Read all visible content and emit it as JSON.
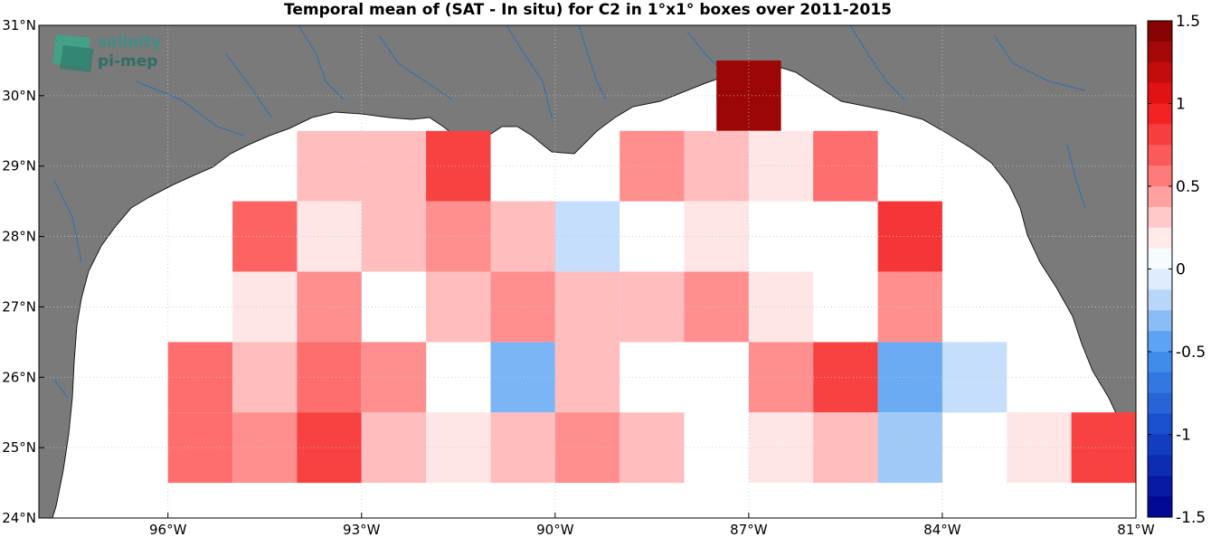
{
  "title": "Temporal mean of (SAT - In situ) for C2 in 1°x1° boxes over 2011-2015",
  "logo": {
    "line1": "salinity",
    "line2": "pi-mep"
  },
  "colors": {
    "land": "#7a7a7a",
    "sea": "#ffffff",
    "river": "#2f6fb0",
    "grid": "#c8c8c8"
  },
  "map": {
    "lon_range": [
      -98,
      -81
    ],
    "lat_range": [
      24,
      31
    ],
    "lon_ticks": [
      {
        "value": -96,
        "label": "96°W"
      },
      {
        "value": -93,
        "label": "93°W"
      },
      {
        "value": -90,
        "label": "90°W"
      },
      {
        "value": -87,
        "label": "87°W"
      },
      {
        "value": -84,
        "label": "84°W"
      },
      {
        "value": -81,
        "label": "81°W"
      }
    ],
    "lat_ticks": [
      {
        "value": 24,
        "label": "24°N"
      },
      {
        "value": 25,
        "label": "25°N"
      },
      {
        "value": 26,
        "label": "26°N"
      },
      {
        "value": 27,
        "label": "27°N"
      },
      {
        "value": 28,
        "label": "28°N"
      },
      {
        "value": 29,
        "label": "29°N"
      },
      {
        "value": 30,
        "label": "30°N"
      },
      {
        "value": 31,
        "label": "31°N"
      }
    ]
  },
  "colorbar": {
    "range": [
      -1.5,
      1.5
    ],
    "ticks": [
      {
        "value": 1.5,
        "label": "1.5"
      },
      {
        "value": 1,
        "label": "1"
      },
      {
        "value": 0.5,
        "label": "0.5"
      },
      {
        "value": 0,
        "label": "0"
      },
      {
        "value": -0.5,
        "label": "-0.5"
      },
      {
        "value": -1,
        "label": "-1"
      },
      {
        "value": -1.5,
        "label": "-1.5"
      }
    ]
  },
  "chart_data": {
    "type": "heatmap",
    "title": "Temporal mean of (SAT - In situ) for C2 in 1°x1° boxes over 2011-2015",
    "cell_size_deg": 1,
    "value_range": [
      -1.5,
      1.5
    ],
    "cells": [
      {
        "lon": -87,
        "lat": 30,
        "value": 1.35
      },
      {
        "lon": -93.5,
        "lat": 29,
        "value": 0.35
      },
      {
        "lon": -92.5,
        "lat": 29,
        "value": 0.35
      },
      {
        "lon": -91.5,
        "lat": 29,
        "value": 0.8
      },
      {
        "lon": -88.5,
        "lat": 29,
        "value": 0.5
      },
      {
        "lon": -87.5,
        "lat": 29,
        "value": 0.35
      },
      {
        "lon": -86.5,
        "lat": 29,
        "value": 0.2
      },
      {
        "lon": -85.5,
        "lat": 29,
        "value": 0.6
      },
      {
        "lon": -94.5,
        "lat": 28,
        "value": 0.65
      },
      {
        "lon": -93.5,
        "lat": 28,
        "value": 0.2
      },
      {
        "lon": -92.5,
        "lat": 28,
        "value": 0.35
      },
      {
        "lon": -91.5,
        "lat": 28,
        "value": 0.5
      },
      {
        "lon": -90.5,
        "lat": 28,
        "value": 0.35
      },
      {
        "lon": -89.5,
        "lat": 28,
        "value": -0.15
      },
      {
        "lon": -87.5,
        "lat": 28,
        "value": 0.2
      },
      {
        "lon": -84.5,
        "lat": 28,
        "value": 0.85
      },
      {
        "lon": -94.5,
        "lat": 27,
        "value": 0.2
      },
      {
        "lon": -93.5,
        "lat": 27,
        "value": 0.5
      },
      {
        "lon": -91.5,
        "lat": 27,
        "value": 0.35
      },
      {
        "lon": -90.5,
        "lat": 27,
        "value": 0.5
      },
      {
        "lon": -89.5,
        "lat": 27,
        "value": 0.35
      },
      {
        "lon": -88.5,
        "lat": 27,
        "value": 0.35
      },
      {
        "lon": -87.5,
        "lat": 27,
        "value": 0.5
      },
      {
        "lon": -86.5,
        "lat": 27,
        "value": 0.2
      },
      {
        "lon": -84.5,
        "lat": 27,
        "value": 0.5
      },
      {
        "lon": -95.5,
        "lat": 26,
        "value": 0.6
      },
      {
        "lon": -94.5,
        "lat": 26,
        "value": 0.35
      },
      {
        "lon": -93.5,
        "lat": 26,
        "value": 0.6
      },
      {
        "lon": -92.5,
        "lat": 26,
        "value": 0.5
      },
      {
        "lon": -90.5,
        "lat": 26,
        "value": -0.35
      },
      {
        "lon": -89.5,
        "lat": 26,
        "value": 0.35
      },
      {
        "lon": -86.5,
        "lat": 26,
        "value": 0.5
      },
      {
        "lon": -85.5,
        "lat": 26,
        "value": 0.8
      },
      {
        "lon": -84.5,
        "lat": 26,
        "value": -0.4
      },
      {
        "lon": -83.5,
        "lat": 26,
        "value": -0.15
      },
      {
        "lon": -95.5,
        "lat": 25,
        "value": 0.6
      },
      {
        "lon": -94.5,
        "lat": 25,
        "value": 0.5
      },
      {
        "lon": -93.5,
        "lat": 25,
        "value": 0.8
      },
      {
        "lon": -92.5,
        "lat": 25,
        "value": 0.35
      },
      {
        "lon": -91.5,
        "lat": 25,
        "value": 0.2
      },
      {
        "lon": -90.5,
        "lat": 25,
        "value": 0.35
      },
      {
        "lon": -89.5,
        "lat": 25,
        "value": 0.5
      },
      {
        "lon": -88.5,
        "lat": 25,
        "value": 0.35
      },
      {
        "lon": -86.5,
        "lat": 25,
        "value": 0.2
      },
      {
        "lon": -85.5,
        "lat": 25,
        "value": 0.35
      },
      {
        "lon": -84.5,
        "lat": 25,
        "value": -0.25
      },
      {
        "lon": -82.5,
        "lat": 25,
        "value": 0.2
      },
      {
        "lon": -81.5,
        "lat": 25,
        "value": 0.8
      }
    ]
  }
}
